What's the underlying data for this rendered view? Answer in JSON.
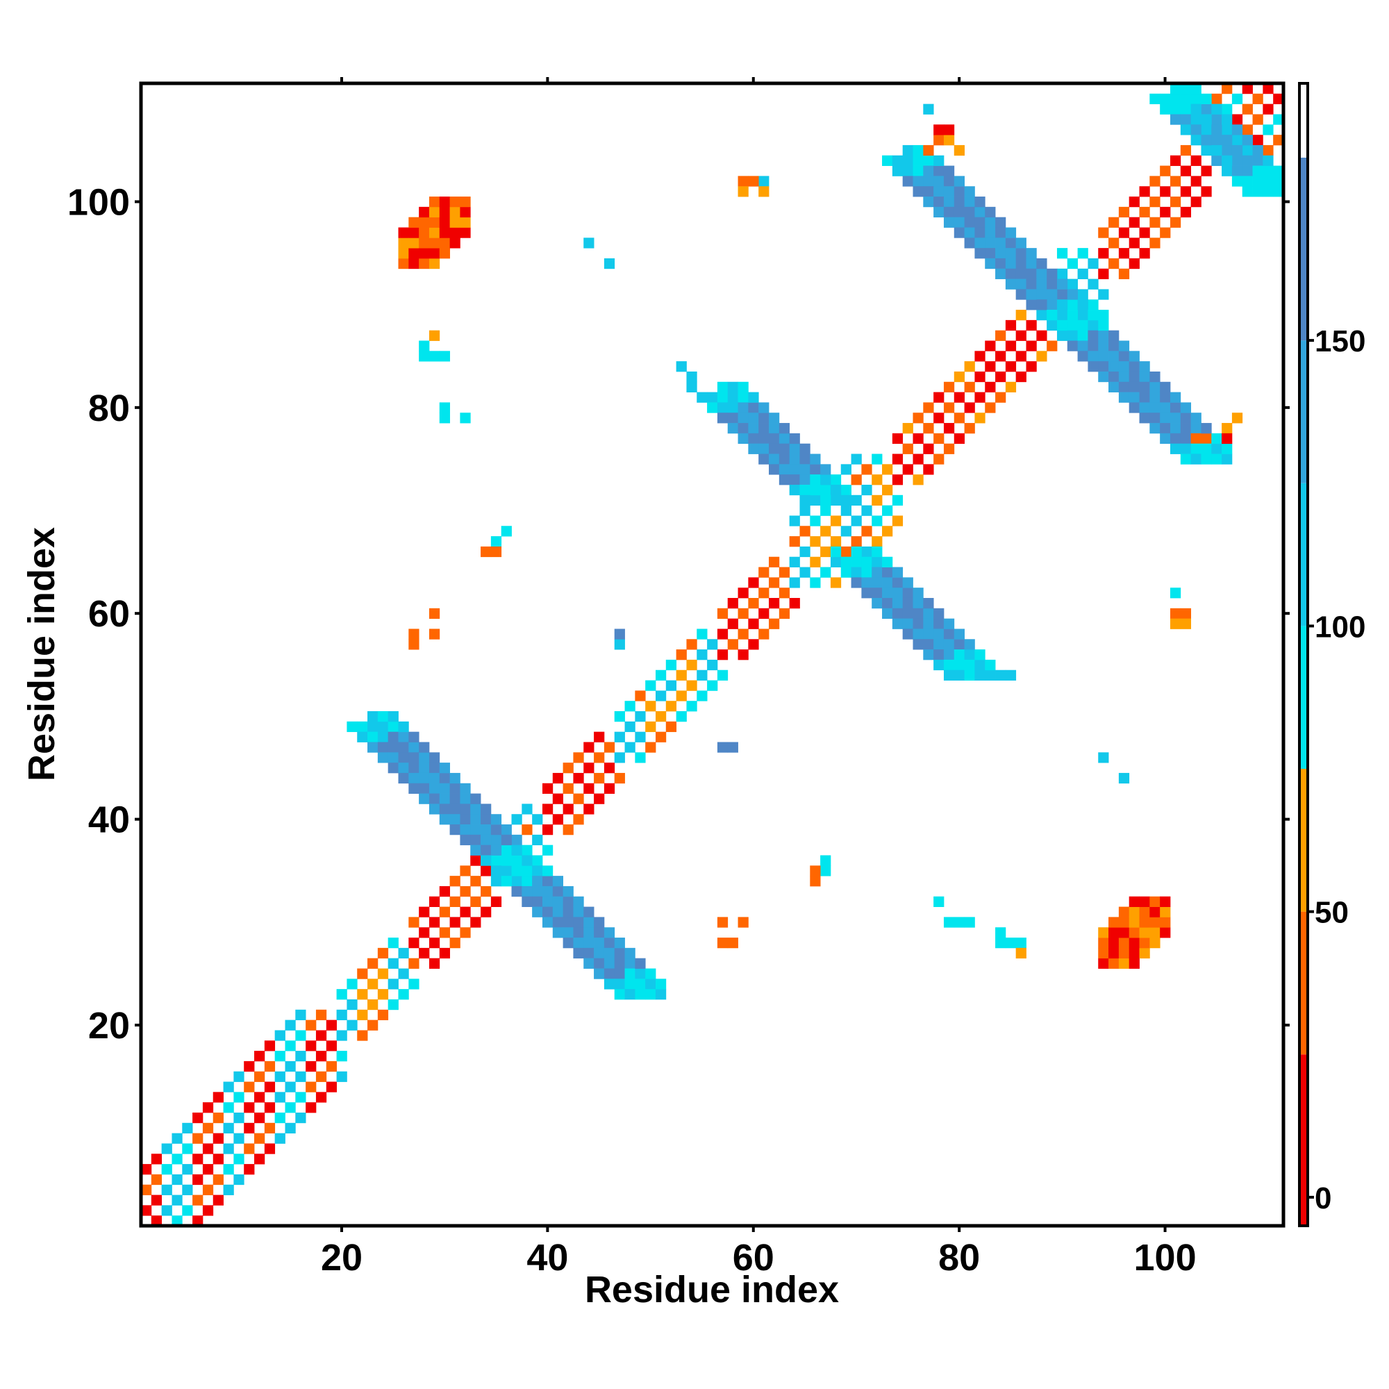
{
  "chart_data": {
    "type": "heatmap",
    "title": "",
    "xlabel": "Residue index",
    "ylabel": "Residue index",
    "xlim": [
      1,
      111
    ],
    "ylim": [
      1,
      111
    ],
    "xticks": [
      20,
      40,
      60,
      80,
      100
    ],
    "yticks": [
      20,
      40,
      60,
      80,
      100
    ],
    "grid": false,
    "legend": "colorbar-right",
    "colorbar": {
      "range": [
        -5,
        195
      ],
      "ticks": [
        0,
        50,
        100,
        150
      ],
      "bands": [
        {
          "from": -5,
          "to": 25,
          "color": "#f00000"
        },
        {
          "from": 25,
          "to": 50,
          "color": "#ff6600"
        },
        {
          "from": 50,
          "to": 75,
          "color": "#ffa000"
        },
        {
          "from": 75,
          "to": 100,
          "color": "#00e5ee"
        },
        {
          "from": 100,
          "to": 125,
          "color": "#12c8ea"
        },
        {
          "from": 125,
          "to": 150,
          "color": "#33a6dd"
        },
        {
          "from": 150,
          "to": 182,
          "color": "#4f86c6"
        },
        {
          "from": 182,
          "to": 195,
          "color": "#ffffff"
        }
      ]
    },
    "features": [
      {
        "kind": "diagonal",
        "from": 1,
        "to": 20,
        "width": 6,
        "pattern": "helix",
        "palette": [
          "#ff6600",
          "#00e5ee",
          "#f00000",
          "#12c8ea"
        ]
      },
      {
        "kind": "diagonal",
        "from": 20,
        "to": 27,
        "width": 4,
        "pattern": "helix",
        "palette": [
          "#ff6600",
          "#00e5ee",
          "#ffa000",
          "#12c8ea"
        ]
      },
      {
        "kind": "diagonal",
        "from": 27,
        "to": 35,
        "width": 4,
        "pattern": "strand",
        "palette": [
          "#f00000",
          "#ff6600"
        ]
      },
      {
        "kind": "diagonal",
        "from": 35,
        "to": 40,
        "width": 4,
        "pattern": "helix",
        "palette": [
          "#ff6600",
          "#00e5ee",
          "#12c8ea"
        ]
      },
      {
        "kind": "diagonal",
        "from": 40,
        "to": 47,
        "width": 4,
        "pattern": "strand",
        "palette": [
          "#f00000",
          "#ff6600"
        ]
      },
      {
        "kind": "diagonal",
        "from": 47,
        "to": 57,
        "width": 4,
        "pattern": "helix",
        "palette": [
          "#ff6600",
          "#00e5ee",
          "#ffa000",
          "#12c8ea"
        ]
      },
      {
        "kind": "diagonal",
        "from": 57,
        "to": 64,
        "width": 4,
        "pattern": "strand",
        "palette": [
          "#f00000",
          "#ff6600"
        ]
      },
      {
        "kind": "diagonal",
        "from": 64,
        "to": 74,
        "width": 5,
        "pattern": "helix",
        "palette": [
          "#ff6600",
          "#00e5ee",
          "#12c8ea",
          "#ffa000"
        ]
      },
      {
        "kind": "diagonal",
        "from": 74,
        "to": 90,
        "width": 4,
        "pattern": "strand",
        "palette": [
          "#f00000",
          "#ff6600",
          "#ffa000"
        ]
      },
      {
        "kind": "diagonal",
        "from": 90,
        "to": 94,
        "width": 5,
        "pattern": "helix",
        "palette": [
          "#ff6600",
          "#00e5ee",
          "#12c8ea"
        ]
      },
      {
        "kind": "diagonal",
        "from": 94,
        "to": 104,
        "width": 4,
        "pattern": "strand",
        "palette": [
          "#f00000",
          "#ff6600"
        ]
      },
      {
        "kind": "diagonal",
        "from": 104,
        "to": 111,
        "width": 5,
        "pattern": "helix",
        "palette": [
          "#ff6600",
          "#00e5ee",
          "#f00000"
        ]
      },
      {
        "kind": "antidiagonal",
        "from": [
          23,
          49
        ],
        "to": [
          37,
          35
        ],
        "width": 4,
        "palette": [
          "#4f86c6",
          "#33a6dd"
        ],
        "ends": [
          "#00e5ee",
          "#12c8ea"
        ]
      },
      {
        "kind": "antidiagonal",
        "from": [
          37,
          35
        ],
        "to": [
          49,
          23
        ],
        "width": 4,
        "palette": [
          "#4f86c6",
          "#33a6dd"
        ],
        "ends": [
          "#00e5ee",
          "#12c8ea"
        ]
      },
      {
        "kind": "antidiagonal",
        "from": [
          57,
          81
        ],
        "to": [
          67,
          71
        ],
        "width": 4,
        "palette": [
          "#4f86c6",
          "#33a6dd"
        ],
        "ends": [
          "#00e5ee",
          "#12c8ea"
        ]
      },
      {
        "kind": "antidiagonal",
        "from": [
          70,
          65
        ],
        "to": [
          81,
          54
        ],
        "width": 4,
        "palette": [
          "#4f86c6",
          "#33a6dd"
        ],
        "ends": [
          "#00e5ee",
          "#12c8ea"
        ]
      },
      {
        "kind": "antidiagonal",
        "from": [
          75,
          104
        ],
        "to": [
          91,
          88
        ],
        "width": 4,
        "palette": [
          "#4f86c6",
          "#33a6dd"
        ],
        "ends": [
          "#00e5ee",
          "#12c8ea"
        ]
      },
      {
        "kind": "antidiagonal",
        "from": [
          91,
          88
        ],
        "to": [
          104,
          75
        ],
        "width": 4,
        "palette": [
          "#4f86c6",
          "#33a6dd"
        ],
        "ends": [
          "#00e5ee",
          "#12c8ea"
        ]
      },
      {
        "kind": "antidiagonal",
        "from": [
          101,
          110
        ],
        "to": [
          110,
          101
        ],
        "width": 4,
        "palette": [
          "#33a6dd",
          "#12c8ea"
        ],
        "ends": [
          "#00e5ee",
          "#00e5ee"
        ]
      },
      {
        "kind": "blob",
        "x": [
          26,
          32
        ],
        "y": [
          94,
          100
        ],
        "palette": [
          "#ff6600",
          "#f00000",
          "#ffa000"
        ]
      },
      {
        "kind": "blob",
        "x": [
          94,
          100
        ],
        "y": [
          26,
          32
        ],
        "palette": [
          "#ff6600",
          "#f00000",
          "#ffa000"
        ]
      },
      {
        "kind": "points",
        "color": "#00e5ee",
        "cells": [
          [
            28,
            85
          ],
          [
            29,
            85
          ],
          [
            30,
            85
          ],
          [
            28,
            86
          ],
          [
            30,
            80
          ],
          [
            30,
            79
          ],
          [
            32,
            79
          ],
          [
            35,
            67
          ],
          [
            36,
            68
          ],
          [
            67,
            35
          ],
          [
            67,
            36
          ],
          [
            78,
            32
          ],
          [
            79,
            30
          ],
          [
            80,
            30
          ],
          [
            81,
            30
          ],
          [
            84,
            29
          ],
          [
            84,
            28
          ],
          [
            85,
            28
          ],
          [
            86,
            28
          ],
          [
            68,
            66
          ],
          [
            69,
            65
          ],
          [
            101,
            62
          ]
        ]
      },
      {
        "kind": "points",
        "color": "#12c8ea",
        "cells": [
          [
            44,
            96
          ],
          [
            46,
            94
          ],
          [
            53,
            84
          ],
          [
            54,
            83
          ],
          [
            54,
            82
          ],
          [
            55,
            81
          ],
          [
            47,
            57
          ],
          [
            47,
            58
          ],
          [
            82,
            55
          ],
          [
            83,
            54
          ],
          [
            84,
            54
          ],
          [
            85,
            54
          ],
          [
            94,
            46
          ],
          [
            96,
            44
          ],
          [
            61,
            102
          ],
          [
            77,
            109
          ]
        ]
      },
      {
        "kind": "points",
        "color": "#4f86c6",
        "cells": [
          [
            57,
            47
          ],
          [
            58,
            47
          ],
          [
            47,
            58
          ]
        ]
      },
      {
        "kind": "points",
        "color": "#ff6600",
        "cells": [
          [
            59,
            102
          ],
          [
            60,
            102
          ],
          [
            27,
            57
          ],
          [
            27,
            58
          ],
          [
            29,
            58
          ],
          [
            29,
            60
          ],
          [
            34,
            66
          ],
          [
            35,
            66
          ],
          [
            66,
            34
          ],
          [
            66,
            35
          ],
          [
            57,
            28
          ],
          [
            58,
            28
          ],
          [
            57,
            30
          ],
          [
            59,
            30
          ],
          [
            77,
            105
          ],
          [
            78,
            106
          ],
          [
            101,
            60
          ],
          [
            102,
            60
          ],
          [
            103,
            77
          ],
          [
            104,
            77
          ]
        ]
      },
      {
        "kind": "points",
        "color": "#ffa000",
        "cells": [
          [
            59,
            101
          ],
          [
            61,
            101
          ],
          [
            29,
            87
          ],
          [
            86,
            27
          ],
          [
            101,
            59
          ],
          [
            102,
            59
          ],
          [
            106,
            78
          ],
          [
            107,
            79
          ],
          [
            79,
            106
          ],
          [
            80,
            105
          ]
        ]
      },
      {
        "kind": "points",
        "color": "#f00000",
        "cells": [
          [
            78,
            107
          ],
          [
            79,
            107
          ],
          [
            106,
            77
          ]
        ]
      }
    ]
  }
}
